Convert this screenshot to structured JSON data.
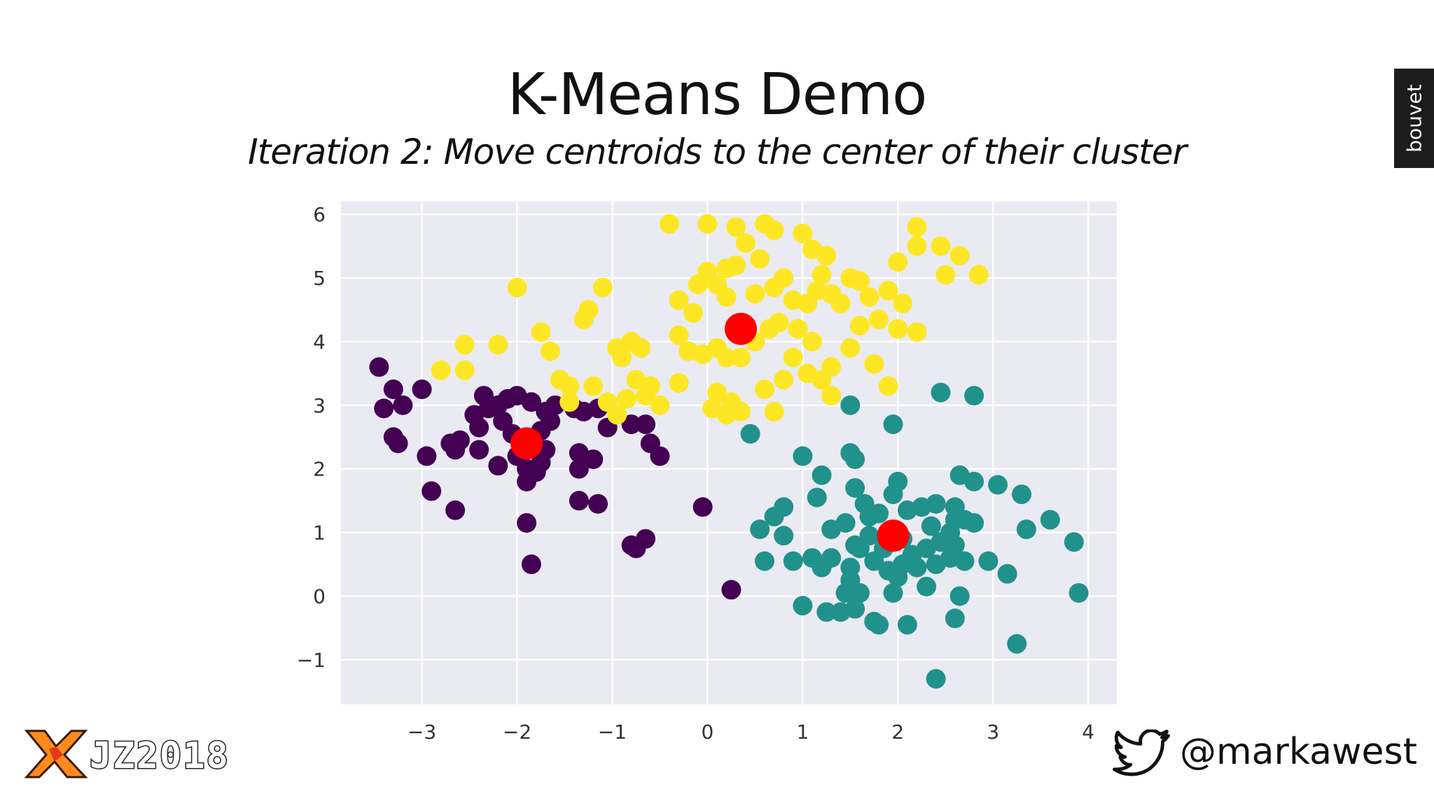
{
  "slide": {
    "title": "K-Means Demo",
    "subtitle": "Iteration 2: Move centroids to the center of their cluster",
    "badge": "bouvet",
    "event_logo": "JZ2018",
    "twitter_handle": "@markawest",
    "icons": [
      "jz-x-logo-icon",
      "twitter-bird-icon"
    ]
  },
  "chart_data": {
    "type": "scatter",
    "title": "",
    "xlabel": "",
    "ylabel": "",
    "xlim": [
      -3.85,
      4.3
    ],
    "ylim": [
      -1.7,
      6.2
    ],
    "xticks": [
      -3,
      -2,
      -1,
      0,
      1,
      2,
      3,
      4
    ],
    "yticks": [
      -1,
      0,
      1,
      2,
      3,
      4,
      5,
      6
    ],
    "xtick_labels": [
      "−3",
      "−2",
      "−1",
      "0",
      "1",
      "2",
      "3",
      "4"
    ],
    "ytick_labels": [
      "−1",
      "0",
      "1",
      "2",
      "3",
      "4",
      "5",
      "6"
    ],
    "grid": true,
    "background": "#eaeaf2",
    "series": [
      {
        "color": "#440154",
        "points": [
          [
            -3.45,
            3.6
          ],
          [
            -3.3,
            3.25
          ],
          [
            -3.2,
            3.0
          ],
          [
            -3.4,
            2.95
          ],
          [
            -3.0,
            3.25
          ],
          [
            -3.3,
            2.5
          ],
          [
            -3.25,
            2.4
          ],
          [
            -2.95,
            2.2
          ],
          [
            -2.7,
            2.4
          ],
          [
            -2.6,
            2.45
          ],
          [
            -2.65,
            2.3
          ],
          [
            -2.9,
            1.65
          ],
          [
            -2.65,
            1.35
          ],
          [
            -2.4,
            2.3
          ],
          [
            -2.45,
            2.85
          ],
          [
            -2.35,
            3.15
          ],
          [
            -2.3,
            2.95
          ],
          [
            -2.4,
            2.65
          ],
          [
            -2.2,
            3.0
          ],
          [
            -2.1,
            3.1
          ],
          [
            -2.0,
            3.15
          ],
          [
            -1.85,
            3.05
          ],
          [
            -1.7,
            2.9
          ],
          [
            -1.6,
            3.0
          ],
          [
            -2.15,
            2.75
          ],
          [
            -2.05,
            2.55
          ],
          [
            -1.95,
            2.45
          ],
          [
            -2.2,
            2.05
          ],
          [
            -2.0,
            2.2
          ],
          [
            -1.9,
            2.0
          ],
          [
            -1.8,
            1.95
          ],
          [
            -1.75,
            2.1
          ],
          [
            -1.7,
            2.3
          ],
          [
            -1.65,
            2.75
          ],
          [
            -1.9,
            1.8
          ],
          [
            -1.4,
            2.95
          ],
          [
            -1.3,
            2.9
          ],
          [
            -1.15,
            2.95
          ],
          [
            -1.05,
            2.65
          ],
          [
            -1.35,
            2.0
          ],
          [
            -1.35,
            2.25
          ],
          [
            -1.2,
            2.15
          ],
          [
            -1.35,
            1.5
          ],
          [
            -1.15,
            1.45
          ],
          [
            -0.8,
            2.7
          ],
          [
            -0.65,
            2.7
          ],
          [
            -0.6,
            2.4
          ],
          [
            -0.5,
            2.2
          ],
          [
            -1.9,
            1.15
          ],
          [
            -1.85,
            0.5
          ],
          [
            -0.8,
            0.8
          ],
          [
            -0.75,
            0.75
          ],
          [
            -0.65,
            0.9
          ],
          [
            -0.05,
            1.4
          ],
          [
            0.25,
            0.1
          ],
          [
            -1.75,
            2.6
          ]
        ]
      },
      {
        "color": "#fde725",
        "points": [
          [
            -2.8,
            3.55
          ],
          [
            -2.55,
            3.55
          ],
          [
            -2.55,
            3.95
          ],
          [
            -2.2,
            3.95
          ],
          [
            -2.0,
            4.85
          ],
          [
            -1.75,
            4.15
          ],
          [
            -1.65,
            3.85
          ],
          [
            -1.55,
            3.4
          ],
          [
            -1.45,
            3.3
          ],
          [
            -1.3,
            4.35
          ],
          [
            -1.25,
            4.5
          ],
          [
            -1.1,
            4.85
          ],
          [
            -1.2,
            3.3
          ],
          [
            -1.05,
            3.05
          ],
          [
            -0.9,
            3.75
          ],
          [
            -0.8,
            4.0
          ],
          [
            -0.7,
            3.9
          ],
          [
            -0.75,
            3.4
          ],
          [
            -0.6,
            3.3
          ],
          [
            -0.5,
            3.0
          ],
          [
            -0.85,
            3.1
          ],
          [
            -0.95,
            2.85
          ],
          [
            -0.4,
            5.85
          ],
          [
            0.0,
            5.85
          ],
          [
            0.3,
            5.8
          ],
          [
            0.6,
            5.85
          ],
          [
            0.7,
            5.75
          ],
          [
            0.4,
            5.55
          ],
          [
            1.0,
            5.7
          ],
          [
            1.1,
            5.45
          ],
          [
            1.25,
            5.35
          ],
          [
            0.55,
            5.3
          ],
          [
            0.2,
            5.15
          ],
          [
            0.3,
            5.2
          ],
          [
            0.0,
            5.1
          ],
          [
            -0.1,
            4.9
          ],
          [
            0.1,
            4.9
          ],
          [
            0.2,
            4.7
          ],
          [
            0.5,
            4.75
          ],
          [
            0.7,
            4.85
          ],
          [
            0.8,
            5.0
          ],
          [
            0.9,
            4.65
          ],
          [
            1.05,
            4.6
          ],
          [
            1.15,
            4.8
          ],
          [
            1.2,
            5.05
          ],
          [
            1.3,
            4.75
          ],
          [
            1.4,
            4.6
          ],
          [
            1.5,
            5.0
          ],
          [
            1.6,
            4.95
          ],
          [
            1.7,
            4.7
          ],
          [
            1.9,
            4.8
          ],
          [
            2.05,
            4.6
          ],
          [
            2.2,
            5.5
          ],
          [
            2.45,
            5.5
          ],
          [
            2.65,
            5.35
          ],
          [
            2.85,
            5.05
          ],
          [
            2.5,
            5.05
          ],
          [
            2.0,
            5.25
          ],
          [
            2.2,
            5.8
          ],
          [
            -0.3,
            4.65
          ],
          [
            -0.15,
            4.45
          ],
          [
            -0.3,
            4.1
          ],
          [
            -0.2,
            3.85
          ],
          [
            -0.05,
            3.8
          ],
          [
            0.1,
            3.9
          ],
          [
            0.2,
            3.75
          ],
          [
            0.35,
            3.75
          ],
          [
            0.5,
            4.0
          ],
          [
            0.65,
            4.2
          ],
          [
            0.75,
            4.3
          ],
          [
            0.95,
            4.2
          ],
          [
            1.1,
            4.0
          ],
          [
            0.9,
            3.75
          ],
          [
            1.05,
            3.5
          ],
          [
            1.2,
            3.4
          ],
          [
            1.3,
            3.6
          ],
          [
            1.5,
            3.9
          ],
          [
            1.6,
            4.25
          ],
          [
            1.75,
            3.65
          ],
          [
            1.9,
            3.3
          ],
          [
            2.0,
            4.2
          ],
          [
            2.2,
            4.15
          ],
          [
            0.1,
            3.2
          ],
          [
            0.25,
            3.05
          ],
          [
            0.35,
            2.9
          ],
          [
            0.05,
            2.95
          ],
          [
            0.6,
            3.25
          ],
          [
            0.7,
            2.9
          ],
          [
            0.8,
            3.4
          ],
          [
            1.3,
            3.15
          ],
          [
            -0.3,
            3.35
          ],
          [
            -1.45,
            3.05
          ],
          [
            -0.65,
            3.15
          ],
          [
            0.2,
            2.85
          ],
          [
            1.8,
            4.35
          ],
          [
            -0.95,
            3.9
          ]
        ]
      },
      {
        "color": "#21918c",
        "points": [
          [
            0.45,
            2.55
          ],
          [
            1.0,
            2.2
          ],
          [
            1.5,
            2.25
          ],
          [
            1.55,
            2.15
          ],
          [
            1.95,
            2.7
          ],
          [
            2.45,
            3.2
          ],
          [
            2.8,
            3.15
          ],
          [
            1.5,
            3.0
          ],
          [
            1.2,
            1.9
          ],
          [
            1.55,
            1.7
          ],
          [
            1.15,
            1.55
          ],
          [
            0.8,
            1.4
          ],
          [
            0.7,
            1.25
          ],
          [
            0.55,
            1.05
          ],
          [
            0.8,
            0.95
          ],
          [
            0.6,
            0.55
          ],
          [
            0.9,
            0.55
          ],
          [
            1.1,
            0.6
          ],
          [
            1.2,
            0.45
          ],
          [
            1.3,
            0.6
          ],
          [
            1.5,
            0.45
          ],
          [
            1.5,
            0.25
          ],
          [
            1.6,
            0.75
          ],
          [
            1.7,
            0.95
          ],
          [
            1.7,
            1.25
          ],
          [
            1.65,
            1.45
          ],
          [
            1.8,
            1.3
          ],
          [
            1.95,
            1.6
          ],
          [
            2.0,
            1.8
          ],
          [
            2.1,
            1.35
          ],
          [
            2.25,
            1.4
          ],
          [
            2.4,
            1.45
          ],
          [
            2.6,
            1.4
          ],
          [
            2.7,
            1.2
          ],
          [
            2.8,
            1.15
          ],
          [
            2.55,
            1.0
          ],
          [
            2.45,
            0.85
          ],
          [
            2.3,
            0.75
          ],
          [
            2.15,
            0.65
          ],
          [
            2.05,
            0.9
          ],
          [
            1.85,
            0.75
          ],
          [
            1.75,
            0.55
          ],
          [
            1.9,
            0.4
          ],
          [
            2.0,
            0.3
          ],
          [
            2.2,
            0.45
          ],
          [
            2.4,
            0.5
          ],
          [
            2.55,
            0.6
          ],
          [
            2.7,
            0.55
          ],
          [
            2.95,
            0.55
          ],
          [
            2.6,
            0.8
          ],
          [
            2.65,
            1.9
          ],
          [
            2.8,
            1.8
          ],
          [
            3.05,
            1.75
          ],
          [
            3.3,
            1.6
          ],
          [
            3.35,
            1.05
          ],
          [
            3.6,
            1.2
          ],
          [
            3.85,
            0.85
          ],
          [
            3.9,
            0.05
          ],
          [
            3.15,
            0.35
          ],
          [
            3.25,
            -0.75
          ],
          [
            2.4,
            -1.3
          ],
          [
            2.6,
            -0.35
          ],
          [
            2.65,
            0.0
          ],
          [
            2.3,
            0.15
          ],
          [
            1.95,
            0.05
          ],
          [
            1.8,
            -0.45
          ],
          [
            2.1,
            -0.45
          ],
          [
            1.75,
            -0.4
          ],
          [
            1.55,
            -0.2
          ],
          [
            1.4,
            -0.25
          ],
          [
            1.25,
            -0.25
          ],
          [
            1.0,
            -0.15
          ],
          [
            1.45,
            0.05
          ],
          [
            1.6,
            0.05
          ],
          [
            1.3,
            1.05
          ],
          [
            1.45,
            1.15
          ],
          [
            2.35,
            1.1
          ],
          [
            2.6,
            1.2
          ],
          [
            1.55,
            0.8
          ],
          [
            2.05,
            0.5
          ]
        ]
      }
    ],
    "centroids": {
      "color": "#ff0000",
      "points": [
        [
          -1.9,
          2.4
        ],
        [
          0.35,
          4.2
        ],
        [
          1.95,
          0.95
        ]
      ]
    }
  }
}
